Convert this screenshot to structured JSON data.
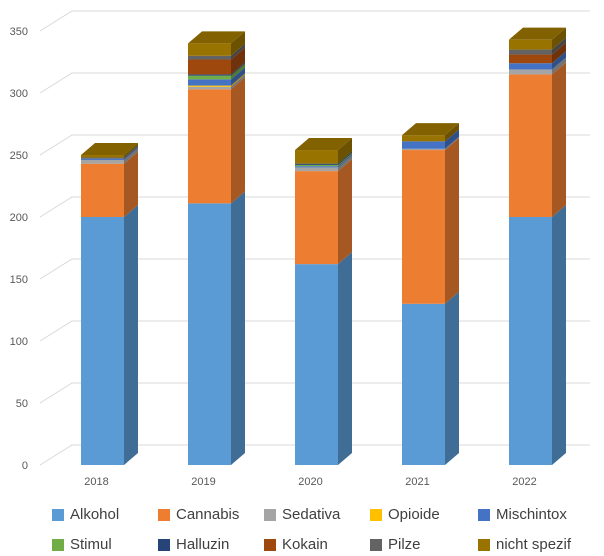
{
  "chart_data": {
    "type": "bar",
    "stacked": true,
    "style": "3d-column",
    "categories": [
      "2018",
      "2019",
      "2020",
      "2021",
      "2022"
    ],
    "ylim": [
      0,
      350
    ],
    "yticks": [
      0,
      50,
      100,
      150,
      200,
      250,
      300,
      350
    ],
    "grid": true,
    "legend_position": "bottom",
    "series": [
      {
        "name": "Alkohol",
        "color": "#5B9BD5",
        "values": [
          200,
          211,
          162,
          130,
          200
        ]
      },
      {
        "name": "Cannabis",
        "color": "#ED7D31",
        "values": [
          43,
          92,
          75,
          124,
          115
        ]
      },
      {
        "name": "Sedativa",
        "color": "#A5A5A5",
        "values": [
          3,
          2,
          3,
          1,
          4
        ]
      },
      {
        "name": "Opioide",
        "color": "#FFC000",
        "values": [
          0,
          1,
          0,
          0,
          0
        ]
      },
      {
        "name": "Mischintox",
        "color": "#4472C4",
        "values": [
          1,
          5,
          1,
          6,
          5
        ]
      },
      {
        "name": "Stimul",
        "color": "#70AD47",
        "values": [
          0,
          3,
          1,
          0,
          0
        ]
      },
      {
        "name": "Halluzin",
        "color": "#264478",
        "values": [
          0,
          1,
          1,
          0,
          0
        ]
      },
      {
        "name": "Kokain",
        "color": "#9E480E",
        "values": [
          0,
          12,
          0,
          0,
          7
        ]
      },
      {
        "name": "Pilze",
        "color": "#636363",
        "values": [
          1,
          3,
          0,
          0,
          4
        ]
      },
      {
        "name": "nicht spezif",
        "color": "#997300",
        "values": [
          2,
          10,
          11,
          5,
          8
        ]
      }
    ]
  }
}
